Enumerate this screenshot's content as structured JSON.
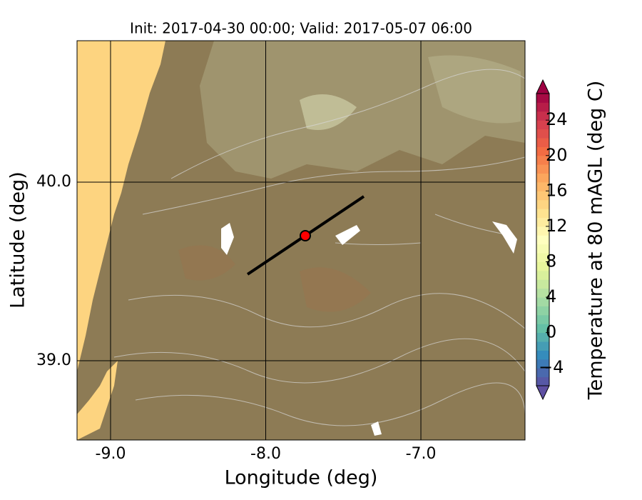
{
  "chart_data": {
    "type": "map",
    "title": "Init: 2017-04-30 00:00; Valid: 2017-05-07 06:00",
    "xlabel": "Longitude (deg)",
    "ylabel": "Latitude (deg)",
    "xlim": [
      -9.216,
      -6.329
    ],
    "ylim": [
      38.556,
      40.792
    ],
    "xticks": [
      {
        "value": -9,
        "label": "-9.0"
      },
      {
        "value": -8,
        "label": "-8.0"
      },
      {
        "value": -7,
        "label": "-7.0"
      }
    ],
    "yticks": [
      {
        "value": 39,
        "label": "39.0"
      },
      {
        "value": 40,
        "label": "40.0"
      }
    ],
    "grid": true,
    "transect": {
      "x": [
        -8.117,
        -7.368
      ],
      "y": [
        39.484,
        39.92
      ],
      "color": "#000000"
    },
    "point": {
      "x": -7.745,
      "y": 39.7,
      "color": "#ff0000"
    },
    "colorbar": {
      "label": "Temperature at 80 mAGL (deg C)",
      "lim": [
        -6,
        27
      ],
      "ticks": [
        {
          "value": -4,
          "label": "−4"
        },
        0,
        4,
        8,
        12,
        16,
        20,
        24
      ]
    }
  }
}
